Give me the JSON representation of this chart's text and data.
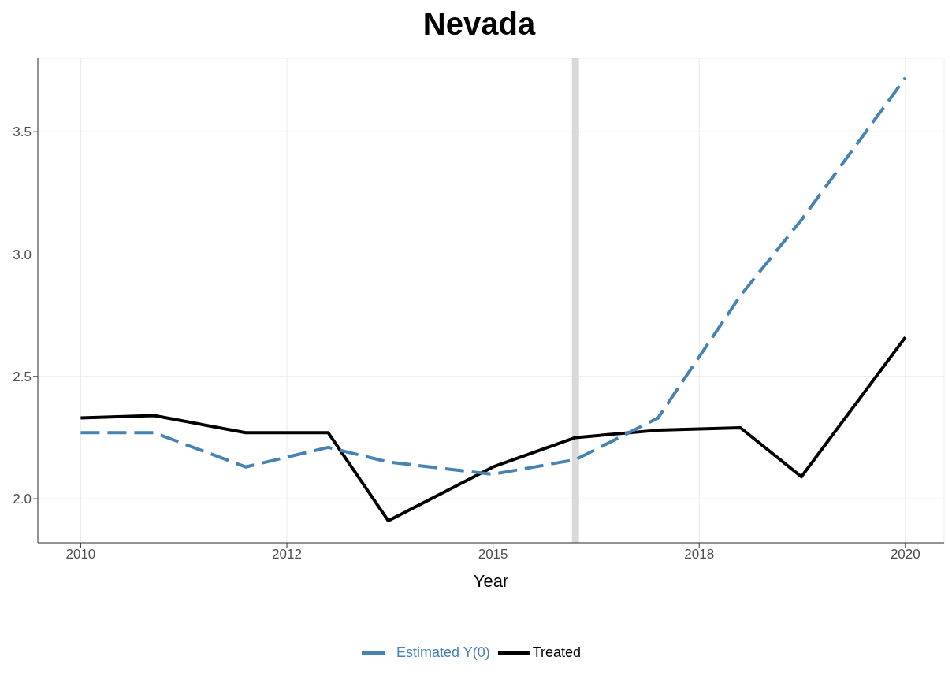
{
  "chart_data": {
    "type": "line",
    "title": "Nevada",
    "xlabel": "Year",
    "x": [
      2010,
      2010.89,
      2012,
      2013,
      2013.73,
      2015,
      2016,
      2017,
      2018,
      2018.74,
      2020
    ],
    "series": [
      {
        "name": "Treated",
        "color": "#000000",
        "line_style": "solid",
        "values": [
          2.33,
          2.34,
          2.27,
          2.27,
          1.91,
          2.13,
          2.25,
          2.28,
          2.29,
          2.09,
          2.66
        ]
      },
      {
        "name": "Estimated Y(0)",
        "color": "#4682b4",
        "line_style": "dashed",
        "values": [
          2.27,
          2.27,
          2.13,
          2.21,
          2.15,
          2.1,
          2.16,
          2.33,
          2.83,
          3.14,
          3.72
        ]
      }
    ],
    "xlim": [
      2009.48,
      2020.47
    ],
    "xticks": [
      2010,
      {
        "value": 2012.5,
        "label": "2012"
      },
      2015,
      {
        "value": 2017.5,
        "label": "2018"
      },
      2020
    ],
    "ylim": [
      1.82,
      3.8
    ],
    "yticks": [
      {
        "value": 2,
        "label": "2.0"
      },
      2.5,
      {
        "value": 3,
        "label": "3.0"
      },
      3.5
    ],
    "ref_lines": [
      {
        "axis": "x",
        "value": 2016,
        "color": "#d9d9d9"
      }
    ],
    "grid": true,
    "legend": "bottom",
    "marker": "none"
  }
}
